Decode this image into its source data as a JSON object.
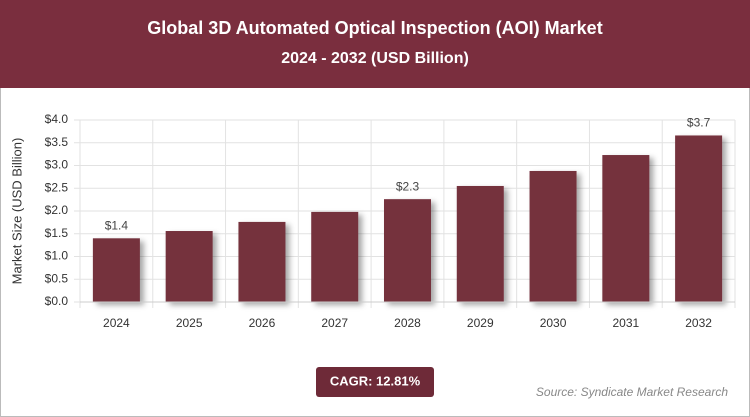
{
  "chart_data": {
    "type": "bar",
    "title": "Global 3D Automated Optical Inspection (AOI) Market",
    "subtitle": "2024 - 2032 (USD Billion)",
    "y_label": "Market Size (USD Billion)",
    "categories": [
      "2024",
      "2025",
      "2026",
      "2027",
      "2028",
      "2029",
      "2030",
      "2031",
      "2032"
    ],
    "values": [
      1.4,
      1.56,
      1.76,
      1.98,
      2.26,
      2.55,
      2.88,
      3.23,
      3.66
    ],
    "value_labels": [
      "$1.4",
      null,
      null,
      null,
      "$2.3",
      null,
      null,
      null,
      "$3.7"
    ],
    "color": "#74303d",
    "ylim": [
      0,
      4
    ],
    "yticks": [
      {
        "value": 0,
        "label": "$0.0"
      },
      {
        "value": 0.5,
        "label": "$0.5"
      },
      {
        "value": 1,
        "label": "$1.0"
      },
      {
        "value": 1.5,
        "label": "$1.5"
      },
      {
        "value": 2,
        "label": "$2.0"
      },
      {
        "value": 2.5,
        "label": "$2.5"
      },
      {
        "value": 3,
        "label": "$3.0"
      },
      {
        "value": 3.5,
        "label": "$3.5"
      },
      {
        "value": 4,
        "label": "$4.0"
      }
    ],
    "grid": true,
    "cagr": "CAGR: 12.81%",
    "source": "Source: Syndicate Market Research"
  }
}
